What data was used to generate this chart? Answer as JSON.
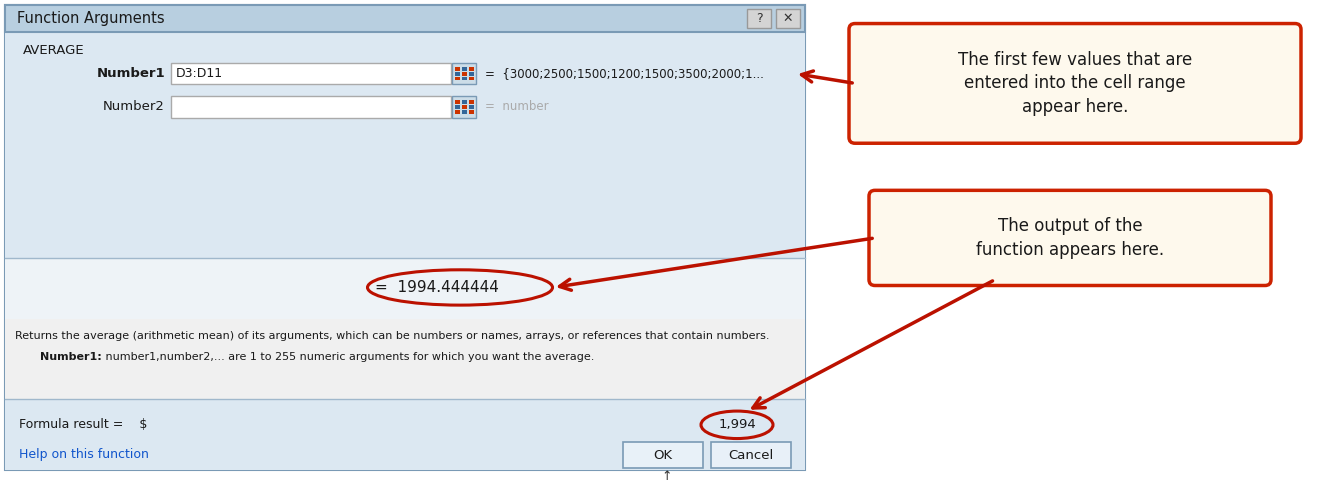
{
  "title": "Function Arguments",
  "dialog_bg": "#f0f0f0",
  "dialog_top_bg": "#dce8f2",
  "dialog_header_bg": "#b8cfe0",
  "function_name": "AVERAGE",
  "number1_label": "Number1",
  "number1_value": "D3:D11",
  "number1_result": "=  {3000;2500;1500;1200;1500;3500;2000;1...",
  "number2_label": "Number2",
  "number2_result": "=  number",
  "formula_output": "=  1994.444444",
  "formula_result_label": "Formula result =    $",
  "formula_result_value": "1,994",
  "description_line1": "Returns the average (arithmetic mean) of its arguments, which can be numbers or names, arrays, or references that contain numbers.",
  "description_line2_bold": "Number1:",
  "description_line2_rest": "   number1,number2,... are 1 to 255 numeric arguments for which you want the average.",
  "help_link": "Help on this function",
  "ok_label": "OK",
  "cancel_label": "Cancel",
  "annotation1_text": "The first few values that are\nentered into the cell range\nappear here.",
  "annotation2_text": "The output of the\nfunction appears here.",
  "arrow_color": "#bb1100",
  "annotation_bg": "#fef9ed",
  "annotation_border": "#cc2200",
  "dialog_border": "#7a9ab5",
  "input_bg": "#ffffff",
  "input_border": "#aaaaaa",
  "text_color": "#1a1a1a",
  "placeholder_color": "#aaaaaa",
  "link_color": "#1155cc",
  "btn_bg": "#dde8f0",
  "btn_border": "#7a9ab5",
  "figure_bg": "#ffffff",
  "title_bar_grad_top": "#c5d9e8",
  "title_bar_grad_bot": "#a8c0d6"
}
